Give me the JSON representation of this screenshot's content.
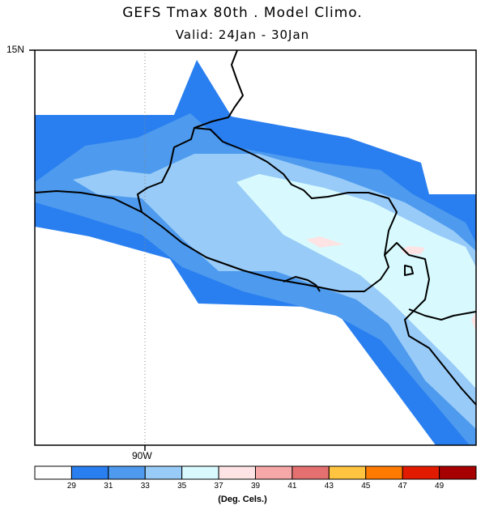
{
  "title": "GEFS Tmax 80th . Model Climo.",
  "subtitle": "Valid: 24Jan - 30Jan",
  "axis": {
    "lat_label": "15N",
    "lon_label": "90W"
  },
  "colorbar": {
    "units": "(Deg. Cels.)",
    "colors": [
      "#ffffff",
      "#2a7ff0",
      "#4d9aee",
      "#98cbf8",
      "#d8fafe",
      "#fde3e3",
      "#f6a7a7",
      "#e57070",
      "#ffc440",
      "#ff7a00",
      "#e21a00",
      "#a70000"
    ],
    "labels": [
      "29",
      "31",
      "33",
      "35",
      "37",
      "39",
      "41",
      "43",
      "45",
      "47",
      "49"
    ]
  },
  "fields": {
    "c29": "#2a7ff0",
    "c31": "#4d9aee",
    "c33": "#98cbf8",
    "c35": "#d8fafe",
    "c37": "#fde3e3"
  }
}
